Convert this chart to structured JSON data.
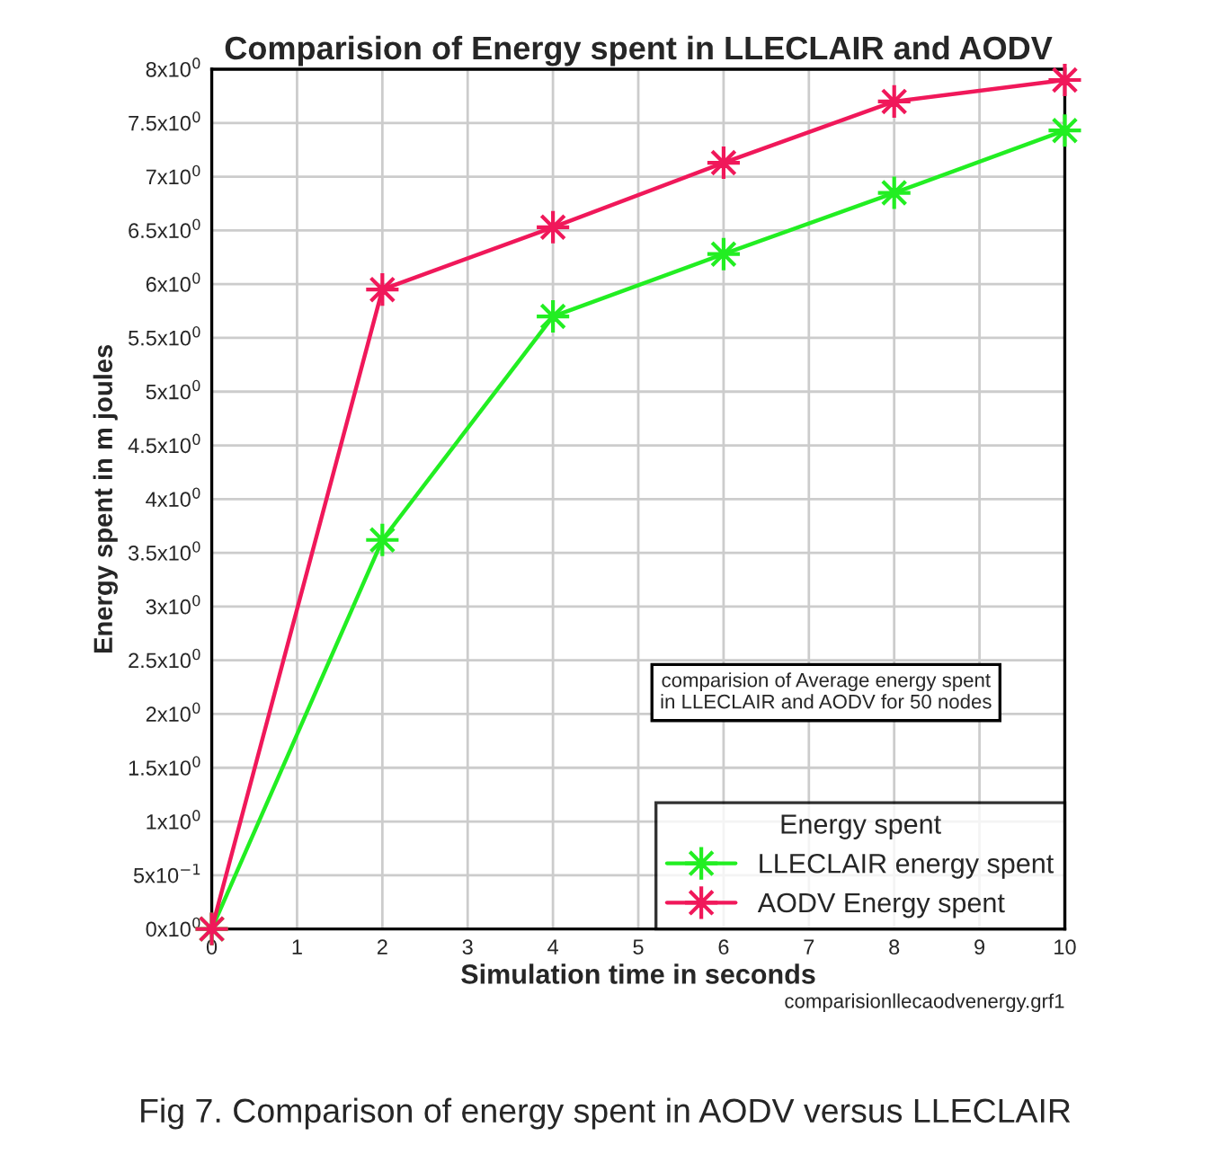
{
  "chart_data": {
    "type": "line",
    "title": "Comparision of Energy spent in LLECLAIR and AODV",
    "xlabel": "Simulation time in seconds",
    "ylabel": "Energy spent in m joules",
    "legend_title": "Energy spent",
    "x": [
      0,
      2,
      4,
      6,
      8,
      10
    ],
    "series": [
      {
        "name": "LLECLAIR energy spent",
        "color": "#22ee22",
        "values": [
          0,
          3.62,
          5.7,
          6.28,
          6.85,
          7.43
        ]
      },
      {
        "name": "AODV Energy spent",
        "color": "#f0185a",
        "values": [
          0,
          5.95,
          6.53,
          7.13,
          7.7,
          7.9
        ]
      }
    ],
    "xlim": [
      0,
      10
    ],
    "xticks": [
      0,
      1,
      2,
      3,
      4,
      5,
      6,
      7,
      8,
      9,
      10
    ],
    "ylim": [
      0,
      8
    ],
    "yticks": [
      {
        "value": 0,
        "label": "0x10$^{0}$"
      },
      {
        "value": 0.5,
        "label": "5x10$^{−1}$"
      },
      {
        "value": 1,
        "label": "1x10$^{0}$"
      },
      {
        "value": 1.5,
        "label": "1.5x10$^{0}$"
      },
      {
        "value": 2,
        "label": "2x10$^{0}$"
      },
      {
        "value": 2.5,
        "label": "2.5x10$^{0}$"
      },
      {
        "value": 3,
        "label": "3x10$^{0}$"
      },
      {
        "value": 3.5,
        "label": "3.5x10$^{0}$"
      },
      {
        "value": 4,
        "label": "4x10$^{0}$"
      },
      {
        "value": 4.5,
        "label": "4.5x10$^{0}$"
      },
      {
        "value": 5,
        "label": "5x10$^{0}$"
      },
      {
        "value": 5.5,
        "label": "5.5x10$^{0}$"
      },
      {
        "value": 6,
        "label": "6x10$^{0}$"
      },
      {
        "value": 6.5,
        "label": "6.5x10$^{0}$"
      },
      {
        "value": 7,
        "label": "7x10$^{0}$"
      },
      {
        "value": 7.5,
        "label": "7.5x10$^{0}$"
      },
      {
        "value": 8,
        "label": "8x10$^{0}$"
      }
    ],
    "grid": true,
    "legend": "bottom right",
    "marker": "star",
    "line_style": "solid",
    "annotations": [
      "comparision of Average energy spent\nin LLECLAIR and AODV for 50 nodes",
      "comparisionllecaodvenergy.grf1",
      "Fig 7. Comparison of energy spent in AODV versus LLECLAIR"
    ]
  }
}
